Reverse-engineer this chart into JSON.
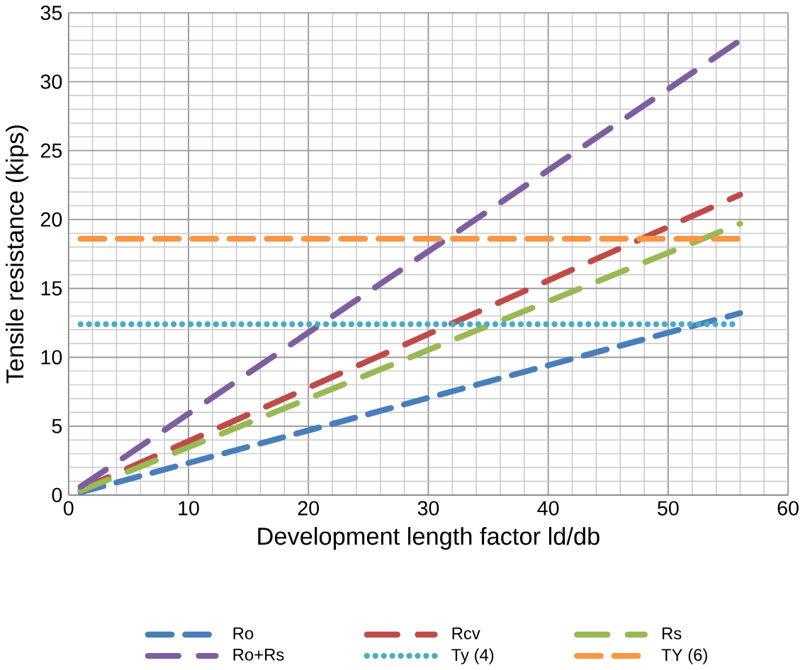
{
  "chart_data": {
    "type": "line",
    "xlabel": "Development length factor ld/db",
    "ylabel": "Tensile  resistance  (kips)",
    "x": [
      1,
      56
    ],
    "series": [
      {
        "name": "Ro",
        "color": "#4a7ebb",
        "values": [
          0.2,
          13.2
        ],
        "line_style": "dashed"
      },
      {
        "name": "Rcv",
        "color": "#be4b48",
        "values": [
          0.4,
          21.8
        ],
        "line_style": "dashdot"
      },
      {
        "name": "Rs",
        "color": "#98b954",
        "values": [
          0.3,
          19.7
        ],
        "line_style": "dashdot"
      },
      {
        "name": "Ro+Rs",
        "color": "#7d5fa0",
        "values": [
          0.6,
          33
        ],
        "line_style": "dashdot"
      },
      {
        "name": "Ty (4)",
        "color": "#4bacc6",
        "values": [
          12.4,
          12.4
        ],
        "line_style": "dotted"
      },
      {
        "name": "TY (6)",
        "color": "#f79646",
        "values": [
          18.6,
          18.6
        ],
        "line_style": "dashed"
      }
    ],
    "xlim": [
      0,
      60
    ],
    "ylim": [
      0,
      35
    ],
    "xticks": [
      0,
      10,
      20,
      30,
      40,
      50,
      60
    ],
    "yticks": [
      0,
      5,
      10,
      15,
      20,
      25,
      30,
      35
    ],
    "grid": true,
    "legend": "bottom",
    "marker": "none"
  }
}
